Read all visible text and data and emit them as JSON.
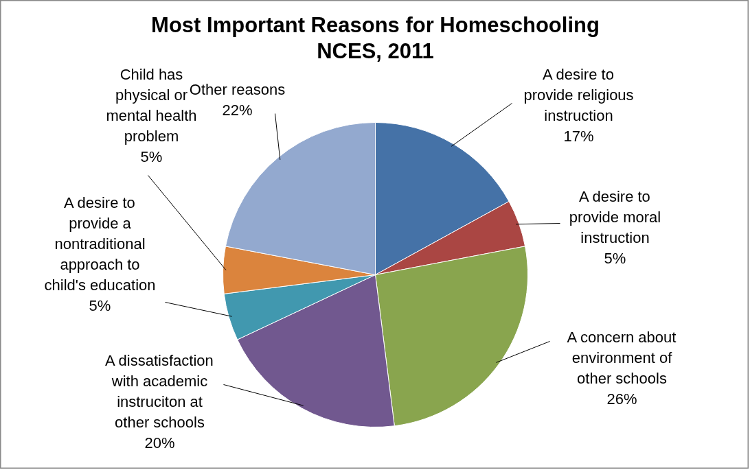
{
  "chart_data": {
    "type": "pie",
    "title": "Most Important Reasons for Homeschooling",
    "subtitle": "NCES, 2011",
    "categories": [
      "A desire to\nprovide religious\ninstruction",
      "A desire to\nprovide moral\ninstruction",
      "A concern about\nenvironment of\nother schools",
      "A dissatisfaction\nwith academic\ninstruciton at\nother schools",
      "A desire to\nprovide a\nnontraditional\napproach to\nchild's education",
      "Child has\nphysical or\nmental health\nproblem",
      "Other reasons"
    ],
    "values": [
      17,
      5,
      26,
      20,
      5,
      5,
      22
    ],
    "value_labels": [
      "17%",
      "5%",
      "26%",
      "20%",
      "5%",
      "5%",
      "22%"
    ],
    "colors": [
      "#4572a7",
      "#aa4643",
      "#89a54e",
      "#71588f",
      "#4198af",
      "#db843d",
      "#93a9cf"
    ]
  }
}
